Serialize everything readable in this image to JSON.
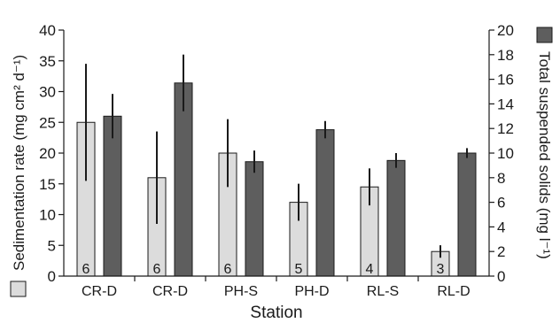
{
  "chart_data": {
    "type": "bar",
    "xlabel": "Station",
    "ylabel_left": "Sedimentation rate (mg cm² d⁻¹)",
    "ylabel_right": "Total suspended solids (mg l⁻¹)",
    "categories": [
      "CR-D",
      "CR-D",
      "PH-S",
      "PH-D",
      "RL-S",
      "RL-D"
    ],
    "sample_sizes": [
      "6",
      "6",
      "6",
      "5",
      "4",
      "3"
    ],
    "left_axis": {
      "ylim": [
        0,
        40
      ],
      "ticks": [
        "0",
        "5",
        "10",
        "15",
        "20",
        "25",
        "30",
        "35",
        "40"
      ]
    },
    "right_axis": {
      "ylim": [
        0,
        20
      ],
      "ticks": [
        "0",
        "2",
        "4",
        "6",
        "8",
        "10",
        "12",
        "14",
        "16",
        "18",
        "20"
      ]
    },
    "series": [
      {
        "axis": "left",
        "color": "#dcdcdc",
        "values": [
          25,
          16,
          20,
          12,
          14.5,
          4
        ],
        "errors": [
          9.5,
          7.5,
          5.5,
          3,
          3,
          1
        ]
      },
      {
        "axis": "right",
        "color": "#5e5e5e",
        "values": [
          13,
          15.7,
          9.3,
          11.9,
          9.4,
          10
        ],
        "errors": [
          1.8,
          2.3,
          0.9,
          0.7,
          0.6,
          0.4
        ]
      }
    ],
    "legend": "bottom-left swatches next to each axis title"
  }
}
